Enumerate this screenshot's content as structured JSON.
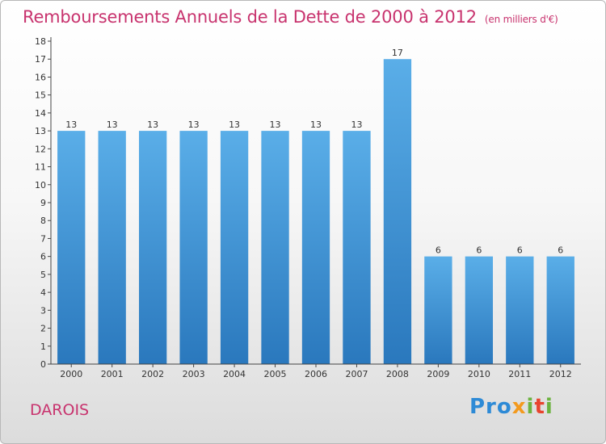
{
  "title": "Remboursements Annuels de la Dette de 2000 à 2012",
  "subtitle": "(en milliers d'€)",
  "commune": "DAROIS",
  "logo": {
    "p1": "Pro",
    "p2": "x",
    "p3": "i",
    "p4": "t",
    "p5": "i"
  },
  "colors": {
    "title": "#c8336e",
    "bar_top": "#5aaee8",
    "bar_bottom": "#2a78bd"
  },
  "chart_data": {
    "type": "bar",
    "categories": [
      "2000",
      "2001",
      "2002",
      "2003",
      "2004",
      "2005",
      "2006",
      "2007",
      "2008",
      "2009",
      "2010",
      "2011",
      "2012"
    ],
    "values": [
      13,
      13,
      13,
      13,
      13,
      13,
      13,
      13,
      17,
      6,
      6,
      6,
      6
    ],
    "ylim": [
      0,
      18
    ],
    "yticks": [
      0,
      1,
      2,
      3,
      4,
      5,
      6,
      7,
      8,
      9,
      10,
      11,
      12,
      13,
      14,
      15,
      16,
      17,
      18
    ],
    "grid": false,
    "data_labels": true
  }
}
